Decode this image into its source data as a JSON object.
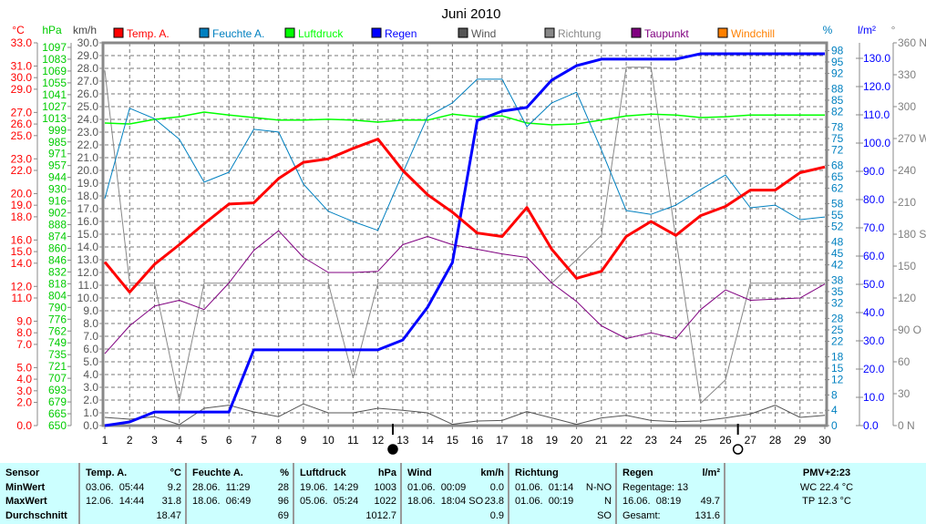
{
  "chart_data": {
    "type": "line",
    "title": "Juni 2010",
    "x": [
      1,
      2,
      3,
      4,
      5,
      6,
      7,
      8,
      9,
      10,
      11,
      12,
      13,
      14,
      15,
      16,
      17,
      18,
      19,
      20,
      21,
      22,
      23,
      24,
      25,
      26,
      27,
      28,
      29,
      30
    ],
    "legend": [
      {
        "name": "Temp. A.",
        "color": "#ff0000"
      },
      {
        "name": "Feuchte A.",
        "color": "#0080c0"
      },
      {
        "name": "Luftdruck",
        "color": "#00ff00"
      },
      {
        "name": "Regen",
        "color": "#0000ff"
      },
      {
        "name": "Wind",
        "color": "#555555"
      },
      {
        "name": "Richtung",
        "color": "#888888"
      },
      {
        "name": "Taupunkt",
        "color": "#800080"
      },
      {
        "name": "Windchill",
        "color": "#ff8000"
      }
    ],
    "legend_placement": "top",
    "grid": true,
    "axes": {
      "temp": {
        "unit": "°C",
        "color": "#ff0000",
        "range": [
          0,
          33
        ],
        "ticks": [
          0,
          2,
          3,
          4,
          5,
          7,
          8,
          9,
          11,
          12,
          14,
          15,
          16,
          18,
          19,
          20,
          22,
          23,
          25,
          26,
          27,
          29,
          30,
          31,
          33
        ]
      },
      "pressure": {
        "unit": "hPa",
        "color": "#00cc00",
        "range": [
          650,
          1097
        ],
        "ticks": [
          650,
          665,
          679,
          693,
          707,
          721,
          735,
          749,
          762,
          776,
          790,
          804,
          818,
          832,
          846,
          860,
          874,
          888,
          902,
          916,
          930,
          944,
          957,
          971,
          985,
          999,
          1013,
          1027,
          1041,
          1055,
          1069,
          1083,
          1097
        ]
      },
      "wind": {
        "unit": "km/h",
        "color": "#444444",
        "range": [
          0,
          30
        ]
      },
      "humidity": {
        "unit": "%",
        "color": "#0080c0",
        "range": [
          0,
          100
        ],
        "ticks": [
          0,
          4,
          8,
          12,
          15,
          18,
          22,
          25,
          28,
          32,
          35,
          38,
          42,
          45,
          48,
          52,
          55,
          58,
          62,
          65,
          68,
          72,
          75,
          78,
          82,
          85,
          88,
          92,
          95,
          98
        ]
      },
      "rain": {
        "unit": "l/m²",
        "color": "#0000ff",
        "range": [
          0,
          135
        ],
        "ticks": [
          0,
          10,
          20,
          30,
          40,
          50,
          60,
          70,
          80,
          90,
          100,
          110,
          120,
          130
        ]
      },
      "direction": {
        "unit": "°",
        "color": "#808080",
        "range": [
          0,
          360
        ],
        "ticks": [
          "0 N",
          "30",
          "60",
          "90 O",
          "120",
          "150",
          "180 S",
          "210",
          "240",
          "270 W",
          "300",
          "330",
          "360 N"
        ]
      }
    },
    "series": [
      {
        "name": "Temp. A.",
        "axis": "temp",
        "width": 3,
        "values": [
          14.1,
          11.5,
          13.9,
          15.6,
          17.4,
          19.1,
          19.2,
          21.3,
          22.7,
          23.0,
          23.9,
          24.7,
          22.0,
          19.9,
          18.4,
          16.6,
          16.3,
          18.8,
          15.2,
          12.7,
          13.3,
          16.3,
          17.6,
          16.4,
          18.1,
          18.9,
          20.3,
          20.3,
          21.8,
          22.3
        ]
      },
      {
        "name": "Feuchte A.",
        "axis": "humidity",
        "width": 1,
        "values": [
          59.3,
          82.9,
          80.2,
          74.8,
          63.6,
          66.2,
          77.4,
          76.7,
          63.1,
          56,
          53.3,
          51,
          66,
          80.7,
          84.3,
          90.5,
          90.5,
          78.1,
          84.3,
          87.1,
          72,
          56.2,
          55.2,
          57.6,
          61.7,
          65.5,
          56.9,
          57.6,
          53.8,
          54.5
        ]
      },
      {
        "name": "Luftdruck",
        "axis": "pressure",
        "width": 1.5,
        "values": [
          1007.6,
          1006.5,
          1011.9,
          1015,
          1020.5,
          1017,
          1014,
          1011,
          1011,
          1012,
          1011,
          1008.6,
          1011,
          1011,
          1018,
          1015,
          1016,
          1007.6,
          1005.4,
          1006.5,
          1011,
          1016,
          1018,
          1017,
          1014,
          1015,
          1017,
          1017,
          1017,
          1017
        ]
      },
      {
        "name": "Regen",
        "axis": "rain",
        "width": 3,
        "values": [
          0,
          1.3,
          4.8,
          4.8,
          4.8,
          4.8,
          26.8,
          26.8,
          26.8,
          26.8,
          26.8,
          26.8,
          30.3,
          41.9,
          57.7,
          108,
          111.3,
          112.6,
          122.3,
          127.4,
          129.7,
          129.7,
          129.7,
          129.7,
          131.6,
          131.6,
          131.6,
          131.6,
          131.6,
          131.6
        ]
      },
      {
        "name": "Wind",
        "axis": "wind",
        "width": 1,
        "values": [
          0.64,
          0.5,
          0.7,
          0.07,
          1.36,
          1.6,
          1.07,
          0.7,
          1.7,
          1.0,
          1.0,
          1.36,
          1.2,
          1.0,
          0.1,
          0.36,
          0.4,
          1.1,
          0.6,
          0.1,
          0.6,
          0.8,
          0.4,
          0.3,
          0.36,
          0.6,
          0.9,
          1.6,
          0.64,
          0.8
        ]
      },
      {
        "name": "Richtung",
        "axis": "direction",
        "width": 1,
        "values": [
          334,
          134,
          134,
          23,
          134,
          134,
          134,
          134,
          134,
          134,
          45,
          134,
          134,
          134,
          134,
          134,
          134,
          134,
          134,
          156,
          179,
          337,
          337,
          176,
          21,
          43,
          134,
          134,
          134,
          134
        ]
      },
      {
        "name": "Taupunkt",
        "axis": "temp",
        "width": 1,
        "values": [
          6.2,
          8.6,
          10.3,
          10.8,
          10.0,
          12.3,
          15.1,
          16.8,
          14.5,
          13.2,
          13.2,
          13.3,
          15.6,
          16.3,
          15.6,
          15.2,
          14.8,
          14.5,
          12.3,
          10.7,
          8.6,
          7.5,
          8.0,
          7.5,
          10.0,
          11.7,
          10.8,
          10.9,
          11.0,
          12.2
        ]
      }
    ],
    "moon_phases": [
      {
        "day": 12.6,
        "phase": "full"
      },
      {
        "day": 26.5,
        "phase": "new"
      }
    ]
  },
  "table": {
    "columns": [
      {
        "header": "Sensor",
        "unit": "",
        "rows": [
          [
            "MinWert",
            ""
          ],
          [
            "MaxWert",
            ""
          ],
          [
            "Durchschnitt",
            ""
          ]
        ]
      },
      {
        "header": "Temp. A.",
        "unit": "°C",
        "rows": [
          [
            "03.06.  05:44",
            "9.2"
          ],
          [
            "12.06.  14:44",
            "31.8"
          ],
          [
            "",
            "18.47"
          ]
        ]
      },
      {
        "header": "Feuchte A.",
        "unit": "%",
        "rows": [
          [
            "28.06.  11:29",
            "28"
          ],
          [
            "18.06.  06:49",
            "96"
          ],
          [
            "",
            "69"
          ]
        ]
      },
      {
        "header": "Luftdruck",
        "unit": "hPa",
        "rows": [
          [
            "19.06.  14:29",
            "1003"
          ],
          [
            "05.06.  05:24",
            "1022"
          ],
          [
            "",
            "1012.7"
          ]
        ]
      },
      {
        "header": "Wind",
        "unit": "km/h",
        "rows": [
          [
            "01.06.  00:09",
            "0.0"
          ],
          [
            "18.06.  18:04 SO",
            "23.8"
          ],
          [
            "",
            "0.9"
          ]
        ]
      },
      {
        "header": "Richtung",
        "unit": "",
        "rows": [
          [
            "01.06.  01:14",
            "N-NO"
          ],
          [
            "01.06.  00:19",
            "N"
          ],
          [
            "",
            "SO"
          ]
        ]
      },
      {
        "header": "Regen",
        "unit": "l/m²",
        "rows": [
          [
            "Regentage: 13",
            ""
          ],
          [
            "16.06.  08:19",
            "49.7"
          ],
          [
            "Gesamt:",
            "131.6"
          ]
        ]
      }
    ],
    "summary": {
      "pmv": "PMV+2:23",
      "wc": "WC 22.4 °C",
      "tp": "TP 12.3 °C"
    }
  }
}
